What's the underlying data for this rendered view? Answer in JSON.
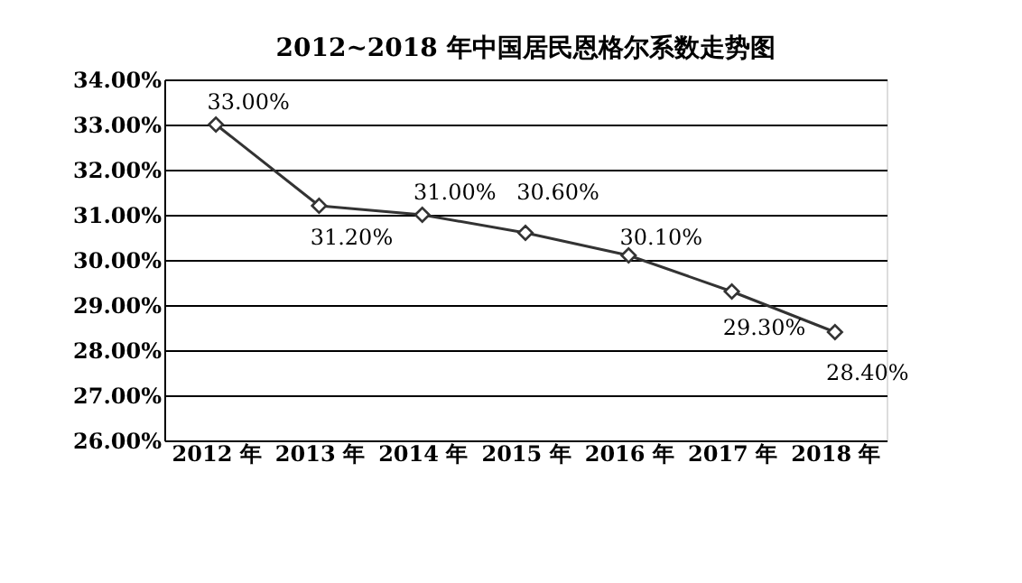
{
  "chart_data": {
    "type": "line",
    "title": "2012~2018 年中国居民恩格尔系数走势图",
    "categories": [
      "2012 年",
      "2013 年",
      "2014 年",
      "2015 年",
      "2016 年",
      "2017 年",
      "2018 年"
    ],
    "series": [
      {
        "color": "#333333",
        "values": [
          33.0,
          31.2,
          31.0,
          30.6,
          30.1,
          29.3,
          28.4
        ],
        "value_labels": [
          "33.00%",
          "31.20%",
          "31.00%",
          "30.60%",
          "30.10%",
          "29.30%",
          "28.40%"
        ]
      }
    ],
    "ylim": [
      26,
      34
    ],
    "yticks": [
      {
        "value": 26,
        "label": "26.00%"
      },
      {
        "value": 27,
        "label": "27.00%"
      },
      {
        "value": 28,
        "label": "28.00%"
      },
      {
        "value": 29,
        "label": "29.00%"
      },
      {
        "value": 30,
        "label": "30.00%"
      },
      {
        "value": 31,
        "label": "31.00%"
      },
      {
        "value": 32,
        "label": "32.00%"
      },
      {
        "value": 33,
        "label": "33.00%"
      },
      {
        "value": 34,
        "label": "34.00%"
      }
    ],
    "grid": "y",
    "marker": "diamond",
    "line_style": "solid"
  }
}
